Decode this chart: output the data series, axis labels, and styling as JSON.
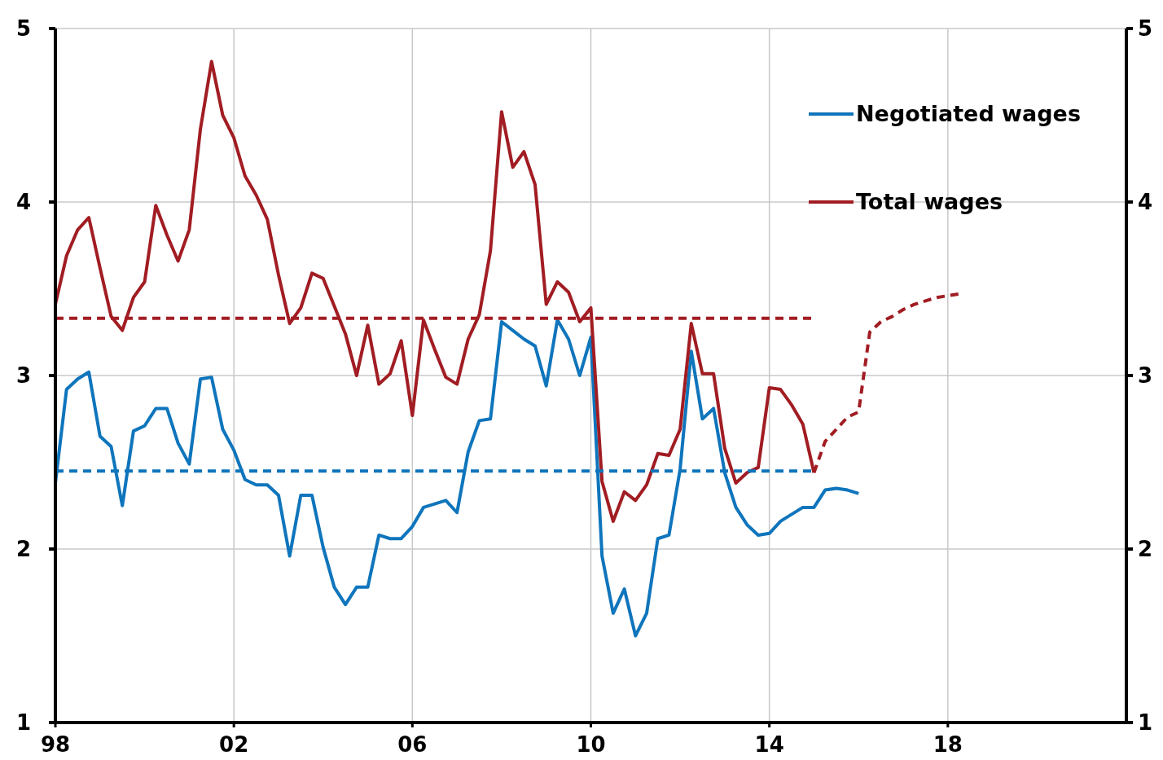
{
  "chart_data": {
    "type": "line",
    "xlim": [
      1998,
      2022
    ],
    "ylim": [
      1,
      5
    ],
    "y2lim": [
      1,
      5
    ],
    "xticks": [
      {
        "value": 1998,
        "label": "98"
      },
      {
        "value": 2002,
        "label": "02"
      },
      {
        "value": 2006,
        "label": "06"
      },
      {
        "value": 2010,
        "label": "10"
      },
      {
        "value": 2014,
        "label": "14"
      },
      {
        "value": 2018,
        "label": "18"
      }
    ],
    "yticks": [
      1,
      2,
      3,
      4,
      5
    ],
    "y2ticks": [
      1,
      2,
      3,
      4,
      5
    ],
    "grid": true,
    "legend": "top right",
    "series": [
      {
        "name": "Negotiated wages",
        "color": "#0f75bc",
        "line_style": "solid",
        "x": [
          1998,
          1998.25,
          1998.5,
          1998.75,
          1999,
          1999.25,
          1999.5,
          1999.75,
          2000,
          2000.25,
          2000.5,
          2000.75,
          2001,
          2001.25,
          2001.5,
          2001.75,
          2002,
          2002.25,
          2002.5,
          2002.75,
          2003,
          2003.25,
          2003.5,
          2003.75,
          2004,
          2004.25,
          2004.5,
          2004.75,
          2005,
          2005.25,
          2005.5,
          2005.75,
          2006,
          2006.25,
          2006.5,
          2006.75,
          2007,
          2007.25,
          2007.5,
          2007.75,
          2008,
          2008.25,
          2008.5,
          2008.75,
          2009,
          2009.25,
          2009.5,
          2009.75,
          2010,
          2010.25,
          2010.5,
          2010.75,
          2011,
          2011.25,
          2011.5,
          2011.75,
          2012,
          2012.25,
          2012.5,
          2012.75,
          2013,
          2013.25,
          2013.5,
          2013.75,
          2014,
          2014.25,
          2014.5,
          2014.75,
          2015,
          2015.25,
          2015.5,
          2015.75,
          2016
        ],
        "values": [
          2.38,
          2.92,
          2.98,
          3.02,
          2.65,
          2.59,
          2.25,
          2.68,
          2.71,
          2.81,
          2.81,
          2.61,
          2.49,
          2.98,
          2.99,
          2.69,
          2.57,
          2.4,
          2.37,
          2.37,
          2.31,
          1.96,
          2.31,
          2.31,
          2.01,
          1.78,
          1.68,
          1.78,
          1.78,
          2.08,
          2.06,
          2.06,
          2.13,
          2.24,
          2.26,
          2.28,
          2.21,
          2.56,
          2.74,
          2.75,
          3.31,
          3.26,
          3.21,
          3.17,
          2.94,
          3.32,
          3.21,
          3.0,
          3.22,
          1.96,
          1.63,
          1.77,
          1.5,
          1.63,
          2.06,
          2.08,
          2.46,
          3.14,
          2.75,
          2.81,
          2.44,
          2.24,
          2.14,
          2.08,
          2.09,
          2.16,
          2.2,
          2.24,
          2.24,
          2.34,
          2.35,
          2.34,
          2.32
        ]
      },
      {
        "name": "Total wages",
        "color": "#a11d23",
        "line_style": "solid",
        "x": [
          1998,
          1998.25,
          1998.5,
          1998.75,
          1999,
          1999.25,
          1999.5,
          1999.75,
          2000,
          2000.25,
          2000.5,
          2000.75,
          2001,
          2001.25,
          2001.5,
          2001.75,
          2002,
          2002.25,
          2002.5,
          2002.75,
          2003,
          2003.25,
          2003.5,
          2003.75,
          2004,
          2004.25,
          2004.5,
          2004.75,
          2005,
          2005.25,
          2005.5,
          2005.75,
          2006,
          2006.25,
          2006.5,
          2006.75,
          2007,
          2007.25,
          2007.5,
          2007.75,
          2008,
          2008.25,
          2008.5,
          2008.75,
          2009,
          2009.25,
          2009.5,
          2009.75,
          2010,
          2010.25,
          2010.5,
          2010.75,
          2011,
          2011.25,
          2011.5,
          2011.75,
          2012,
          2012.25,
          2012.5,
          2012.75,
          2013,
          2013.25,
          2013.5,
          2013.75,
          2014,
          2014.25,
          2014.5,
          2014.75,
          2015
        ],
        "values": [
          3.41,
          3.69,
          3.84,
          3.91,
          3.62,
          3.34,
          3.26,
          3.45,
          3.54,
          3.98,
          3.81,
          3.66,
          3.84,
          4.42,
          4.81,
          4.5,
          4.37,
          4.15,
          4.04,
          3.9,
          3.58,
          3.3,
          3.39,
          3.59,
          3.56,
          3.4,
          3.24,
          3.0,
          3.29,
          2.95,
          3.01,
          3.2,
          2.77,
          3.32,
          3.15,
          2.99,
          2.95,
          3.21,
          3.35,
          3.72,
          4.52,
          4.2,
          4.29,
          4.1,
          3.41,
          3.54,
          3.48,
          3.31,
          3.39,
          2.39,
          2.16,
          2.33,
          2.28,
          2.37,
          2.55,
          2.54,
          2.69,
          3.3,
          3.01,
          3.01,
          2.58,
          2.38,
          2.44,
          2.47,
          2.93,
          2.92,
          2.83,
          2.72,
          2.44
        ]
      },
      {
        "color": "#a11d23",
        "line_style": "dashed",
        "x": [
          2015,
          2015.25,
          2015.5,
          2015.75,
          2016,
          2016.25,
          2016.5,
          2016.75,
          2017,
          2017.25,
          2017.5,
          2017.75,
          2018,
          2018.25
        ],
        "values": [
          2.44,
          2.62,
          2.69,
          2.76,
          2.79,
          3.25,
          3.31,
          3.34,
          3.38,
          3.41,
          3.43,
          3.45,
          3.46,
          3.47
        ]
      },
      {
        "color": "#0f75bc",
        "line_style": "dashed",
        "x": [
          1998,
          2015
        ],
        "values": [
          2.45,
          2.45
        ]
      },
      {
        "color": "#a11d23",
        "line_style": "dashed",
        "x": [
          1998,
          2015
        ],
        "values": [
          3.33,
          3.33
        ]
      }
    ]
  }
}
